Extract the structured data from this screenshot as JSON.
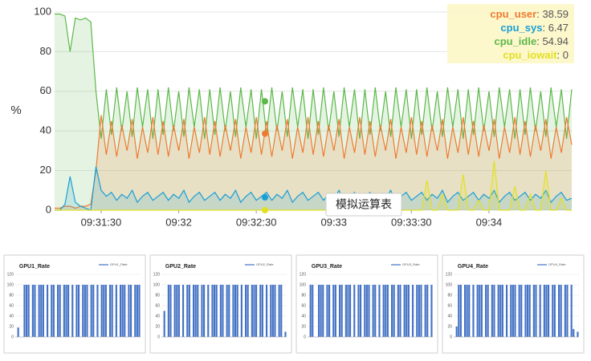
{
  "chart_data": [
    {
      "type": "area",
      "y_label": "%",
      "annotation": "模拟运算表",
      "x": [
        "09:31:12",
        "09:31:14",
        "09:31:16",
        "09:31:18",
        "09:31:20",
        "09:31:22",
        "09:31:24",
        "09:31:26",
        "09:31:28",
        "09:31:30",
        "09:31:32",
        "09:31:34",
        "09:31:36",
        "09:31:38",
        "09:31:40",
        "09:31:42",
        "09:31:44",
        "09:31:46",
        "09:31:48",
        "09:31:50",
        "09:31:52",
        "09:31:54",
        "09:31:56",
        "09:31:58",
        "09:32:00",
        "09:32:02",
        "09:32:04",
        "09:32:06",
        "09:32:08",
        "09:32:10",
        "09:32:12",
        "09:32:14",
        "09:32:16",
        "09:32:18",
        "09:32:20",
        "09:32:22",
        "09:32:24",
        "09:32:26",
        "09:32:28",
        "09:32:30",
        "09:32:32",
        "09:32:34",
        "09:32:36",
        "09:32:38",
        "09:32:40",
        "09:32:42",
        "09:32:44",
        "09:32:46",
        "09:32:48",
        "09:32:50",
        "09:32:52",
        "09:32:54",
        "09:32:56",
        "09:32:58",
        "09:33:00",
        "09:33:02",
        "09:33:04",
        "09:33:06",
        "09:33:08",
        "09:33:10",
        "09:33:12",
        "09:33:14",
        "09:33:16",
        "09:33:18",
        "09:33:20",
        "09:33:22",
        "09:33:24",
        "09:33:26",
        "09:33:28",
        "09:33:30",
        "09:33:32",
        "09:33:34",
        "09:33:36",
        "09:33:38",
        "09:33:40",
        "09:33:42",
        "09:33:44",
        "09:33:46",
        "09:33:48",
        "09:33:50",
        "09:33:52",
        "09:33:54",
        "09:33:56",
        "09:33:58",
        "09:34:00",
        "09:34:02",
        "09:34:04",
        "09:34:06",
        "09:34:08",
        "09:34:10",
        "09:34:12",
        "09:34:14",
        "09:34:16",
        "09:34:18",
        "09:34:20",
        "09:34:22",
        "09:34:24",
        "09:34:26",
        "09:34:28",
        "09:34:30",
        "09:34:32"
      ],
      "xlim": [
        "09:31:12",
        "09:34:32"
      ],
      "xticks": [
        "09:31:30",
        "09:32",
        "09:32:30",
        "09:33",
        "09:33:30",
        "09:34"
      ],
      "ylim": [
        0,
        100
      ],
      "yticks": [
        0,
        20,
        40,
        60,
        80,
        100
      ],
      "grid": true,
      "series": [
        {
          "name": "cpu_idle",
          "color": "#5cb84a",
          "current": 54.94,
          "values": [
            99,
            99,
            98,
            80,
            97,
            96,
            97,
            95,
            60,
            36,
            61,
            38,
            62,
            40,
            60,
            37,
            62,
            42,
            61,
            36,
            61,
            38,
            62,
            40,
            60,
            37,
            62,
            42,
            61,
            36,
            61,
            38,
            62,
            40,
            60,
            37,
            62,
            42,
            61,
            36,
            61,
            38,
            62,
            40,
            60,
            37,
            62,
            42,
            61,
            36,
            61,
            38,
            62,
            40,
            60,
            37,
            62,
            42,
            61,
            36,
            61,
            38,
            62,
            40,
            60,
            37,
            62,
            42,
            61,
            36,
            61,
            38,
            62,
            40,
            60,
            37,
            62,
            42,
            61,
            36,
            61,
            38,
            62,
            40,
            60,
            37,
            62,
            42,
            61,
            36,
            61,
            38,
            62,
            40,
            60,
            37,
            62,
            42,
            61,
            36,
            61
          ]
        },
        {
          "name": "cpu_user",
          "color": "#f07a30",
          "current": 38.59,
          "values": [
            1,
            1,
            2,
            2,
            1,
            2,
            2,
            3,
            20,
            48,
            28,
            45,
            27,
            43,
            30,
            46,
            26,
            42,
            29,
            47,
            28,
            45,
            27,
            43,
            30,
            46,
            26,
            42,
            29,
            47,
            28,
            45,
            27,
            43,
            30,
            46,
            26,
            42,
            29,
            47,
            28,
            45,
            27,
            43,
            30,
            46,
            26,
            42,
            29,
            47,
            28,
            45,
            27,
            43,
            30,
            46,
            26,
            42,
            29,
            47,
            28,
            45,
            27,
            43,
            30,
            46,
            26,
            42,
            29,
            47,
            28,
            45,
            27,
            43,
            30,
            46,
            26,
            42,
            29,
            47,
            28,
            45,
            27,
            43,
            30,
            46,
            26,
            42,
            29,
            47,
            28,
            45,
            27,
            43,
            30,
            46,
            26,
            42,
            29,
            47,
            33
          ]
        },
        {
          "name": "cpu_sys",
          "color": "#1a9fd6",
          "current": 6.47,
          "values": [
            0,
            0,
            3,
            17,
            4,
            2,
            1,
            0,
            22,
            10,
            7,
            9,
            5,
            8,
            6,
            10,
            4,
            7,
            9,
            5,
            7,
            9,
            5,
            8,
            6,
            10,
            4,
            7,
            9,
            5,
            7,
            9,
            5,
            8,
            6,
            10,
            4,
            7,
            9,
            5,
            7,
            9,
            5,
            8,
            6,
            10,
            4,
            7,
            9,
            5,
            7,
            9,
            5,
            8,
            6,
            10,
            4,
            7,
            9,
            5,
            7,
            9,
            5,
            8,
            6,
            10,
            4,
            7,
            9,
            5,
            7,
            9,
            5,
            8,
            6,
            10,
            4,
            7,
            9,
            5,
            7,
            9,
            5,
            8,
            6,
            10,
            4,
            7,
            9,
            5,
            7,
            9,
            5,
            8,
            6,
            10,
            4,
            7,
            9,
            5,
            6
          ]
        },
        {
          "name": "cpu_iowait",
          "color": "#e2e024",
          "current": 0,
          "values": [
            0,
            0,
            0,
            0,
            0,
            0,
            0,
            0,
            0,
            0,
            0,
            0,
            0,
            0,
            0,
            0,
            0,
            0,
            0,
            0,
            0,
            0,
            0,
            0,
            0,
            0,
            0,
            0,
            0,
            0,
            0,
            0,
            0,
            0,
            0,
            0,
            0,
            0,
            0,
            0,
            0,
            0,
            0,
            0,
            0,
            0,
            0,
            0,
            0,
            0,
            0,
            0,
            0,
            0,
            0,
            0,
            0,
            0,
            0,
            0,
            0,
            0,
            0,
            0,
            0,
            0,
            0,
            0,
            0,
            0,
            0,
            0,
            15,
            0,
            0,
            8,
            0,
            0,
            0,
            18,
            0,
            0,
            5,
            0,
            0,
            25,
            0,
            0,
            0,
            12,
            0,
            0,
            8,
            0,
            0,
            20,
            0,
            0,
            6,
            0,
            0
          ]
        }
      ]
    },
    {
      "type": "bar",
      "title": "GPU1_Rate",
      "ylim": [
        0,
        120
      ],
      "yticks": [
        0,
        20,
        40,
        60,
        80,
        100,
        120
      ],
      "grid": true,
      "series": [
        {
          "name": "GPU1_Rate",
          "color": "#4472c4",
          "values": [
            0,
            18,
            0,
            0,
            100,
            100,
            100,
            0,
            100,
            100,
            0,
            100,
            100,
            100,
            0,
            100,
            0,
            100,
            100,
            0,
            100,
            100,
            0,
            100,
            100,
            100,
            0,
            100,
            0,
            100,
            100,
            0,
            100,
            100,
            100,
            0,
            100,
            100,
            0,
            100,
            0,
            100,
            100,
            100,
            0,
            100,
            100,
            0,
            100,
            0,
            100,
            100,
            100,
            0,
            100,
            100,
            0,
            100,
            100,
            100
          ]
        }
      ]
    },
    {
      "type": "bar",
      "title": "GPU2_Rate",
      "ylim": [
        0,
        120
      ],
      "yticks": [
        0,
        20,
        40,
        60,
        80,
        100,
        120
      ],
      "grid": true,
      "series": [
        {
          "name": "GPU2_Rate",
          "color": "#4472c4",
          "values": [
            0,
            50,
            0,
            100,
            100,
            0,
            100,
            100,
            100,
            0,
            100,
            0,
            100,
            100,
            0,
            100,
            100,
            100,
            0,
            100,
            100,
            0,
            100,
            0,
            100,
            100,
            100,
            0,
            100,
            100,
            0,
            100,
            100,
            0,
            100,
            100,
            100,
            0,
            100,
            0,
            100,
            100,
            0,
            100,
            100,
            100,
            0,
            100,
            100,
            0,
            100,
            0,
            100,
            100,
            100,
            0,
            100,
            100,
            0,
            10
          ]
        }
      ]
    },
    {
      "type": "bar",
      "title": "GPU3_Rate",
      "ylim": [
        0,
        120
      ],
      "yticks": [
        0,
        20,
        40,
        60,
        80,
        100,
        120
      ],
      "grid": true,
      "series": [
        {
          "name": "GPU3_Rate",
          "color": "#4472c4",
          "values": [
            0,
            100,
            100,
            0,
            0,
            100,
            100,
            100,
            0,
            100,
            100,
            0,
            100,
            100,
            0,
            100,
            100,
            0,
            100,
            100,
            100,
            0,
            100,
            0,
            100,
            100,
            0,
            100,
            100,
            100,
            0,
            100,
            100,
            0,
            100,
            0,
            100,
            100,
            100,
            0,
            100,
            100,
            0,
            100,
            100,
            0,
            100,
            100,
            100,
            0,
            100,
            0,
            100,
            100,
            100,
            0,
            100,
            100,
            0,
            100
          ]
        }
      ]
    },
    {
      "type": "bar",
      "title": "GPU4_Rate",
      "ylim": [
        0,
        120
      ],
      "yticks": [
        0,
        20,
        40,
        60,
        80,
        100,
        120
      ],
      "grid": true,
      "series": [
        {
          "name": "GPU4_Rate",
          "color": "#4472c4",
          "values": [
            0,
            20,
            100,
            100,
            0,
            100,
            100,
            100,
            0,
            100,
            0,
            100,
            100,
            100,
            0,
            100,
            100,
            0,
            100,
            100,
            0,
            100,
            100,
            100,
            0,
            100,
            0,
            100,
            100,
            100,
            0,
            100,
            100,
            0,
            100,
            100,
            100,
            0,
            100,
            100,
            0,
            100,
            0,
            100,
            100,
            100,
            0,
            100,
            100,
            0,
            100,
            100,
            0,
            100,
            100,
            0,
            100,
            15,
            0,
            10
          ]
        }
      ]
    }
  ]
}
